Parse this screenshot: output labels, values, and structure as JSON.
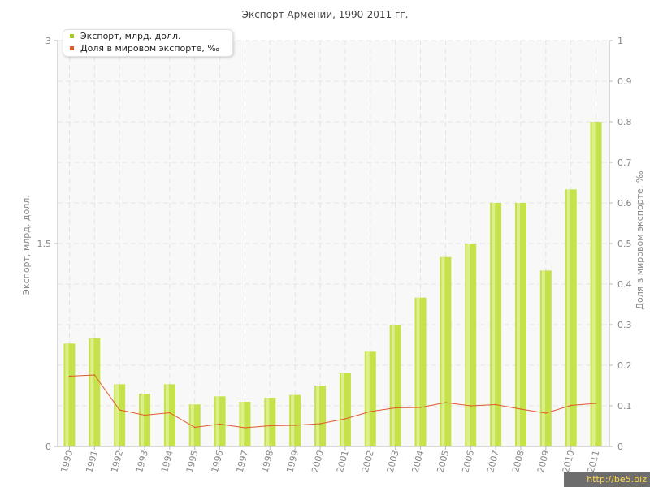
{
  "chart_data": {
    "type": "bar",
    "title": "Экспорт Армении, 1990-2011 гг.",
    "ylabel": "Экспорт, млрд. долл.",
    "y2label": "Доля в мировом экспорте, ‰",
    "ylim": [
      0,
      3
    ],
    "y2lim": [
      0,
      1
    ],
    "yticks": [
      "0",
      "1.5",
      "3"
    ],
    "y2ticks": [
      "0",
      "0.1",
      "0.2",
      "0.3",
      "0.4",
      "0.5",
      "0.6",
      "0.7",
      "0.8",
      "0.9",
      "1"
    ],
    "categories": [
      "1990",
      "1991",
      "1992",
      "1993",
      "1994",
      "1995",
      "1996",
      "1997",
      "1998",
      "1999",
      "2000",
      "2001",
      "2002",
      "2003",
      "2004",
      "2005",
      "2006",
      "2007",
      "2008",
      "2009",
      "2010",
      "2011"
    ],
    "series": [
      {
        "name": "Экспорт, млрд. долл.",
        "type": "bar",
        "axis": "left",
        "values": [
          0.76,
          0.8,
          0.46,
          0.39,
          0.46,
          0.31,
          0.37,
          0.33,
          0.36,
          0.38,
          0.45,
          0.54,
          0.7,
          0.9,
          1.1,
          1.4,
          1.5,
          1.8,
          1.8,
          1.3,
          1.9,
          2.4
        ]
      },
      {
        "name": "Доля в мировом экспорте, ‰",
        "type": "line",
        "axis": "right",
        "values": [
          0.173,
          0.176,
          0.09,
          0.077,
          0.083,
          0.047,
          0.055,
          0.046,
          0.051,
          0.052,
          0.056,
          0.068,
          0.086,
          0.095,
          0.096,
          0.108,
          0.1,
          0.103,
          0.092,
          0.082,
          0.101,
          0.106
        ]
      }
    ],
    "grid": true,
    "legend_position": "top-left",
    "colors": {
      "bar": "#c5e24a",
      "bar_light": "#dcef8c",
      "line": "#e05a2b",
      "plot_bg": "#f8f8f8",
      "grid": "#e4e4e4",
      "axis": "#b7b7b7",
      "tick_text": "#888888"
    }
  },
  "watermark": "http://be5.biz"
}
